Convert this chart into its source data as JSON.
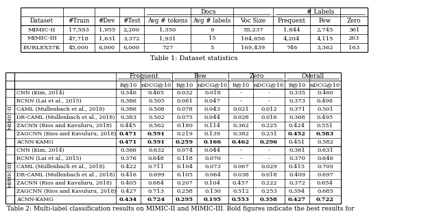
{
  "table1_caption": "Table 1: Dataset statistics",
  "table1_headers_row2": [
    "Dataset",
    "#Train",
    "#Dev",
    "#Test",
    "Avg # tokens",
    "Avg # labels",
    "Voc Size",
    "Frequent",
    "Few",
    "Zero"
  ],
  "table1_data": [
    [
      "MIMIC-II",
      "17,593",
      "1,955",
      "2,200",
      "1,350",
      "9",
      "55,237",
      "1,844",
      "2,745",
      "361"
    ],
    [
      "MIMIC-III",
      "47,718",
      "1,631",
      "3,372",
      "1,931",
      "15",
      "104,656",
      "4,204",
      "4,115",
      "203"
    ],
    [
      "EURLEX57K",
      "45,000",
      "6,000",
      "6,000",
      "727",
      "5",
      "169,439",
      "746",
      "3,362",
      "163"
    ]
  ],
  "table2_caption": "Table 2: Multi-label classification results on MIMIC-II and MIMIC-III. Bold figures indicate the best results for",
  "table2_mimic2_rows": [
    [
      "CNN (Kim, 2014)",
      "0.346",
      "0.465",
      "0.032",
      "0.018",
      "-",
      "-",
      "0.335",
      "0.460"
    ],
    [
      "RCNN (Lai et al., 2015)",
      "0.386",
      "0.505",
      "0.081",
      "0.047",
      "-",
      "-",
      "0.373",
      "0.498"
    ],
    [
      "CAML (Mullenbach et al., 2018)",
      "0.386",
      "0.508",
      "0.078",
      "0.043",
      "0.021",
      "0.012",
      "0.371",
      "0.501"
    ],
    [
      "DR-CAML (Mullenbach et al., 2018)",
      "0.383",
      "0.502",
      "0.075",
      "0.044",
      "0.028",
      "0.016",
      "0.368",
      "0.495"
    ],
    [
      "ZACNN (Rios and Kavuluru, 2018)",
      "0.445",
      "0.562",
      "0.180",
      "0.114",
      "0.362",
      "0.225",
      "0.424",
      "0.551"
    ],
    [
      "ZAGCNN (Rios and Kavuluru, 2018)",
      "0.471",
      "0.591",
      "0.219",
      "0.139",
      "0.382",
      "0.231",
      "0.452",
      "0.583"
    ],
    [
      "ACNN-KAMG",
      "0.471",
      "0.591",
      "0.259",
      "0.166",
      "0.462",
      "0.296",
      "0.451",
      "0.582"
    ]
  ],
  "table2_mimic2_bold": [
    [
      false,
      false,
      false,
      false,
      false,
      false,
      false,
      false
    ],
    [
      false,
      false,
      false,
      false,
      false,
      false,
      false,
      false
    ],
    [
      false,
      false,
      false,
      false,
      false,
      false,
      false,
      false
    ],
    [
      false,
      false,
      false,
      false,
      false,
      false,
      false,
      false
    ],
    [
      false,
      false,
      false,
      false,
      false,
      false,
      false,
      false
    ],
    [
      true,
      true,
      false,
      false,
      false,
      false,
      true,
      true
    ],
    [
      true,
      true,
      true,
      true,
      true,
      true,
      false,
      false
    ]
  ],
  "table2_mimic3_rows": [
    [
      "CNN (Kim, 2014)",
      "0.366",
      "0.632",
      "0.074",
      "0.044",
      "-",
      "-",
      "0.361",
      "0.631"
    ],
    [
      "RCNN (Lai et al., 2015)",
      "0.376",
      "0.648",
      "0.118",
      "0.070",
      "-",
      "-",
      "0.370",
      "0.646"
    ],
    [
      "CAML (Mullenbach et al., 2018)",
      "0.422",
      "0.711",
      "0.104",
      "0.073",
      "0.067",
      "0.029",
      "0.415",
      "0.709"
    ],
    [
      "DR-CAML (Mullenbach et al., 2018)",
      "0.416",
      "0.699",
      "0.105",
      "0.064",
      "0.038",
      "0.018",
      "0.409",
      "0.697"
    ],
    [
      "ZACNN (Rios and Kavuluru, 2018)",
      "0.405",
      "0.684",
      "0.207",
      "0.104",
      "0.457",
      "0.222",
      "0.372",
      "0.654"
    ],
    [
      "ZAGCNN (Rios and Kavuluru, 2018)",
      "0.427",
      "0.713",
      "0.258",
      "0.130",
      "0.512",
      "0.253",
      "0.394",
      "0.685"
    ],
    [
      "ACNN-KAMG",
      "0.434",
      "0.724",
      "0.295",
      "0.195",
      "0.553",
      "0.358",
      "0.427",
      "0.722"
    ]
  ],
  "table2_mimic3_bold": [
    [
      false,
      false,
      false,
      false,
      false,
      false,
      false,
      false
    ],
    [
      false,
      false,
      false,
      false,
      false,
      false,
      false,
      false
    ],
    [
      false,
      false,
      false,
      false,
      false,
      false,
      false,
      false
    ],
    [
      false,
      false,
      false,
      false,
      false,
      false,
      false,
      false
    ],
    [
      false,
      false,
      false,
      false,
      false,
      false,
      false,
      false
    ],
    [
      false,
      false,
      false,
      false,
      false,
      false,
      false,
      false
    ],
    [
      true,
      true,
      true,
      true,
      true,
      true,
      true,
      true
    ]
  ],
  "bg_color": "#ffffff"
}
